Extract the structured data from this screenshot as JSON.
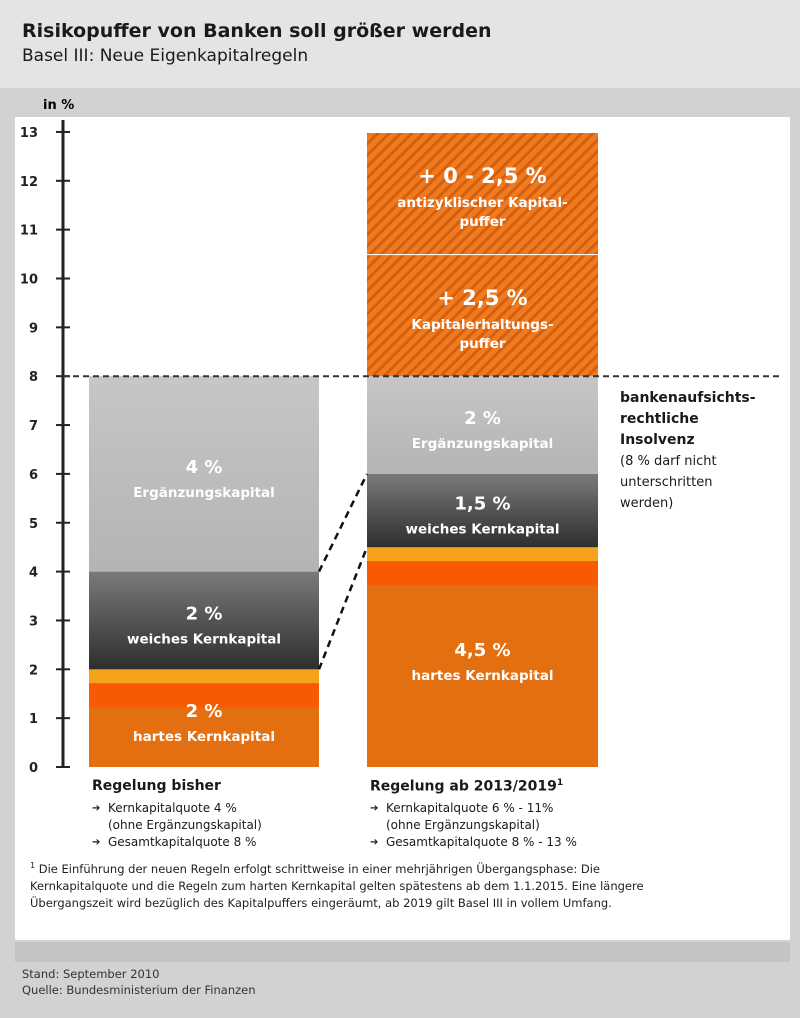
{
  "header": {
    "title": "Risikopuffer von Banken soll größer werden",
    "subtitle": "Basel III: Neue Eigenkapitalregeln"
  },
  "chart_data": {
    "type": "bar",
    "stacked": true,
    "ylabel": "in %",
    "ylim": [
      0,
      13
    ],
    "yticks": [
      0,
      1,
      2,
      3,
      4,
      5,
      6,
      7,
      8,
      9,
      10,
      11,
      12,
      13
    ],
    "threshold": {
      "value": 8,
      "label_bold": "bankenaufsichts-\nrechtliche\nInsolvenz",
      "label_normal": "(8 % darf nicht\nunterschritten\nwerden)"
    },
    "colors": {
      "hart": "#e36f10",
      "hart_light": "#f6a21d",
      "hart_band": "#f75a02",
      "weich": "#5a5a5a",
      "ergaenzung": "#c3c3c3",
      "puffer": "#f07a1e",
      "puffer_hatch": "#d45f10"
    },
    "columns": [
      {
        "title": "Regelung bisher",
        "bullets": [
          "Kernkapitalquote 4 %",
          "(ohne Ergänzungskapital)",
          "Gesamtkapitalquote 8 %"
        ],
        "segments": [
          {
            "kind": "hart",
            "value": 2,
            "pct": "2 %",
            "label": "hartes Kernkapital"
          },
          {
            "kind": "weich",
            "value": 2,
            "pct": "2 %",
            "label": "weiches Kernkapital"
          },
          {
            "kind": "ergaenzung",
            "value": 4,
            "pct": "4 %",
            "label": "Ergänzungskapital"
          }
        ]
      },
      {
        "title": "Regelung ab 2013/2019",
        "title_sup": "1",
        "bullets": [
          "Kernkapitalquote 6 % - 11%",
          "(ohne Ergänzungskapital)",
          "Gesamtkapitalquote 8 %  - 13 %"
        ],
        "segments": [
          {
            "kind": "hart",
            "value": 4.5,
            "pct": "4,5 %",
            "label": "hartes Kernkapital"
          },
          {
            "kind": "weich",
            "value": 1.5,
            "pct": "1,5 %",
            "label": "weiches Kernkapital"
          },
          {
            "kind": "ergaenzung",
            "value": 2,
            "pct": "2 %",
            "label": "Ergänzungskapital"
          },
          {
            "kind": "puffer",
            "value": 2.5,
            "pct": "+ 2,5 %",
            "label": "Kapitalerhaltungs-\npuffer"
          },
          {
            "kind": "puffer",
            "value": 2.5,
            "pct": "+ 0 - 2,5 %",
            "label": "antizyklischer Kapital-\npuffer"
          }
        ]
      }
    ]
  },
  "footnote": {
    "marker": "1",
    "text": "Die Einführung der neuen Regeln erfolgt schrittweise in einer mehrjährigen Übergangsphase: Die Kernkapitalquote und die Regeln zum harten Kernkapital gelten spätestens ab dem 1.1.2015. Eine längere Übergangszeit wird bezüglich des Kapitalpuffers eingeräumt, ab 2019 gilt Basel III in vollem Umfang."
  },
  "source": {
    "stand": "Stand: September 2010",
    "quelle": "Quelle: Bundesministerium der Finanzen"
  }
}
